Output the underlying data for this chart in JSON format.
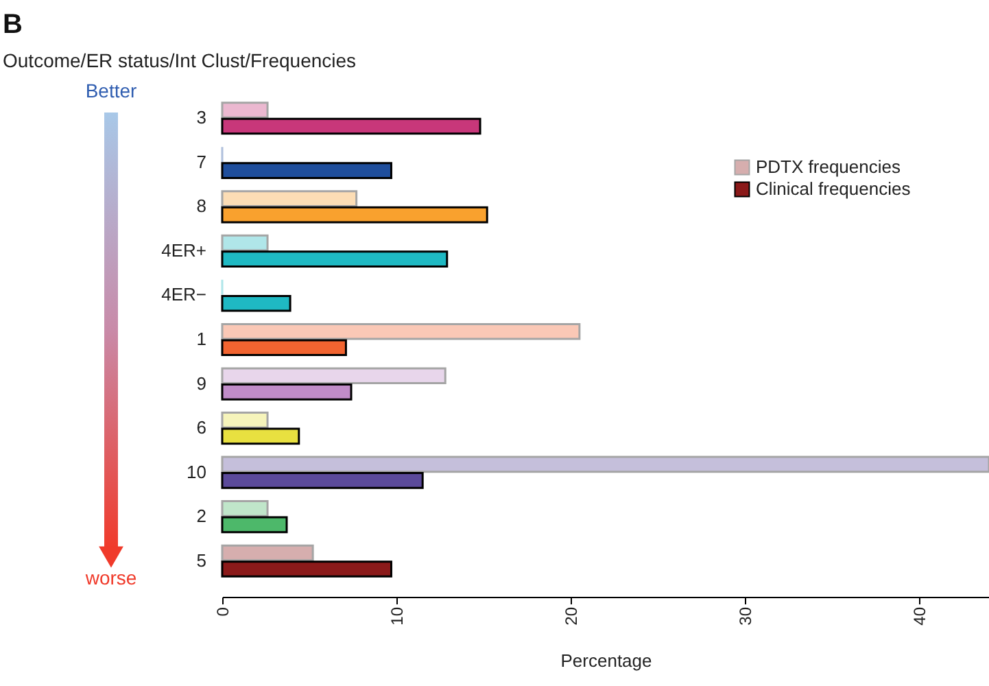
{
  "chart_data": {
    "type": "bar",
    "orientation": "horizontal",
    "title": "B",
    "subtitle": "Outcome/ER status/Int Clust/Frequencies",
    "xlabel": "Percentage",
    "categories": [
      "3",
      "7",
      "8",
      "4ER+",
      "4ER−",
      "1",
      "9",
      "6",
      "10",
      "2",
      "5"
    ],
    "series": [
      {
        "name": "PDTX frequencies",
        "color": "#8b1a1a",
        "colors": [
          "#c8377a",
          "#1f4e9c",
          "#f9a12e",
          "#1fb9c3",
          "#1fb9c3",
          "#f26430",
          "#c08cc8",
          "#e8e040",
          "#5b4a9a",
          "#4db86a",
          "#8b1a1a"
        ],
        "values": [
          2.6,
          0,
          7.7,
          2.6,
          0,
          20.5,
          12.8,
          2.6,
          44,
          2.6,
          5.2
        ]
      },
      {
        "name": "Clinical frequencies",
        "color": "#8b1a1a",
        "colors": [
          "#c8377a",
          "#1f4e9c",
          "#f9a12e",
          "#1fb9c3",
          "#1fb9c3",
          "#f26430",
          "#c08cc8",
          "#e8e040",
          "#5b4a9a",
          "#4db86a",
          "#8b1a1a"
        ],
        "values": [
          14.8,
          9.7,
          15.2,
          12.9,
          3.9,
          7.1,
          7.4,
          4.4,
          11.5,
          3.7,
          9.7
        ]
      }
    ],
    "xlim": [
      0,
      44
    ],
    "xticks": [
      0,
      10,
      20,
      30,
      40
    ],
    "grid": false,
    "legend": "top right",
    "annotations": [
      "Better",
      "worse"
    ]
  }
}
